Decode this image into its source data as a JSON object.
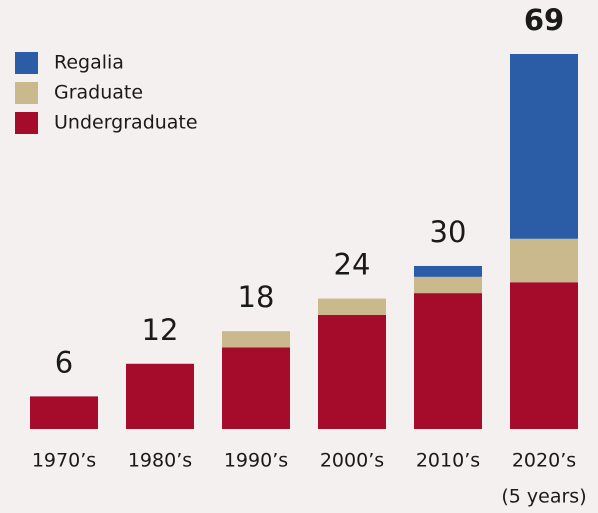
{
  "chart_data": {
    "type": "stacked-bar",
    "categories": [
      "1970’s",
      "1980’s",
      "1990’s",
      "2000’s",
      "2010’s",
      "2020’s"
    ],
    "note": "(5 years)",
    "series": [
      {
        "name": "Undergraduate",
        "color": "#a50b2b",
        "values": [
          6,
          12,
          15,
          21,
          25,
          27
        ]
      },
      {
        "name": "Graduate",
        "color": "#c9b98c",
        "values": [
          0,
          0,
          3,
          3,
          3,
          8
        ]
      },
      {
        "name": "Regalia",
        "color": "#2b5ca6",
        "values": [
          0,
          0,
          0,
          0,
          2,
          34
        ]
      }
    ],
    "totals": [
      6,
      12,
      18,
      24,
      30,
      69
    ],
    "legend": "top-left"
  }
}
